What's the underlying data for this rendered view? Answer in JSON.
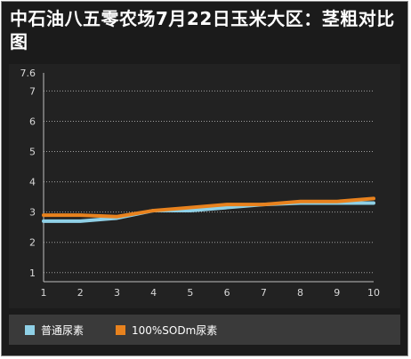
{
  "chart_data": {
    "type": "line",
    "title": "中石油八五零农场7月22日玉米大区：茎粗对比图",
    "x": [
      1,
      2,
      3,
      4,
      5,
      6,
      7,
      8,
      9,
      10
    ],
    "series": [
      {
        "name": "普通尿素",
        "color": "#8fd0e6",
        "values": [
          2.7,
          2.7,
          2.8,
          3.05,
          3.05,
          3.15,
          3.25,
          3.3,
          3.3,
          3.3
        ]
      },
      {
        "name": "100%SODm尿素",
        "color": "#e8821e",
        "values": [
          2.9,
          2.9,
          2.85,
          3.05,
          3.15,
          3.25,
          3.25,
          3.35,
          3.35,
          3.45
        ]
      }
    ],
    "y_ticks": [
      1,
      2,
      3,
      4,
      5,
      6,
      7,
      7.6
    ],
    "ylim": [
      0.7,
      7.6
    ],
    "xlim": [
      1,
      10
    ],
    "grid": true,
    "legend_position": "bottom-left"
  }
}
